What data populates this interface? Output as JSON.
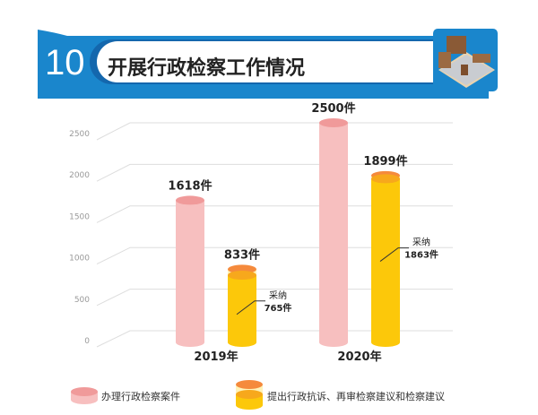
{
  "header": {
    "number": "10",
    "title": "开展行政检察工作情况",
    "icon": "courtroom-illustration"
  },
  "colors": {
    "blue": "#1a86cc",
    "pink": "#f7bfbf",
    "pink_top": "#f09a9a",
    "yellow": "#fcc80a",
    "yellow_top": "#f7a81c",
    "orange": "#f58a3c",
    "pale": "#fff3b8"
  },
  "chart_data": {
    "type": "bar",
    "categories": [
      "2019年",
      "2020年"
    ],
    "yticks": [
      "0",
      "500",
      "1000",
      "1500",
      "2000",
      "2500"
    ],
    "ylim": [
      0,
      2500
    ],
    "grid": true,
    "legend_placement": "bottom",
    "series": [
      {
        "name": "办理行政检察案件",
        "values": [
          1618,
          2500
        ],
        "labels": [
          "1618件",
          "2500件"
        ]
      },
      {
        "name": "提出行政抗诉、再审检察建议和检察建议",
        "values": [
          833,
          1899
        ],
        "labels": [
          "833件",
          "1899件"
        ],
        "accepted": [
          765,
          1863
        ],
        "accepted_label": "采纳",
        "accepted_labels": [
          "765件",
          "1863件"
        ]
      }
    ]
  }
}
